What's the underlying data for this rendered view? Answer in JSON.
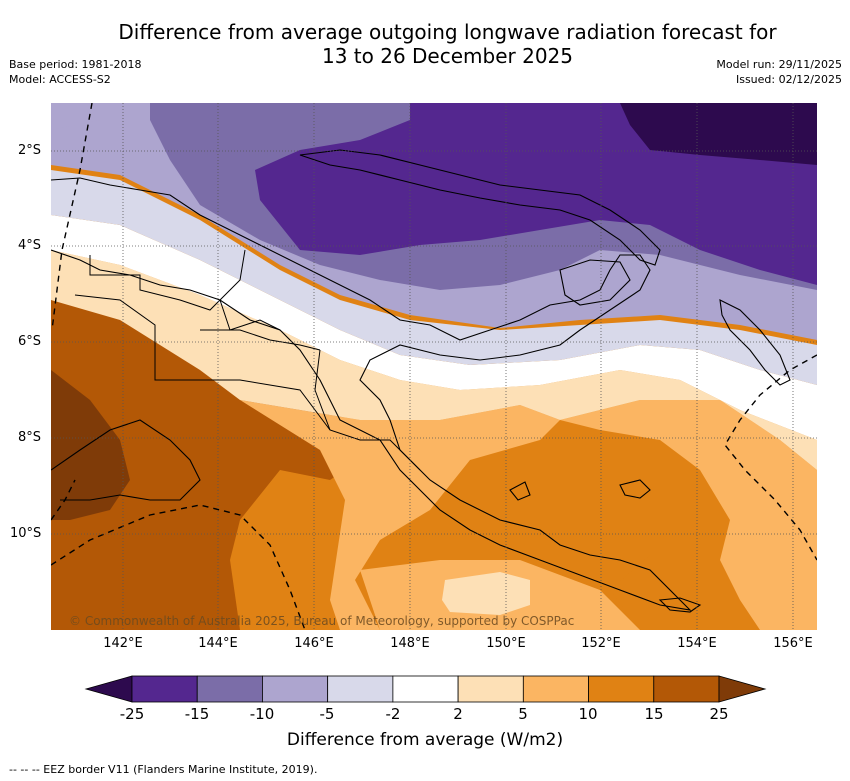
{
  "header": {
    "title_line1": "Difference from average outgoing longwave radiation forecast for",
    "title_line2": "13 to 26 December 2025",
    "base_period": "Base period: 1981-2018",
    "model": "Model: ACCESS-S2",
    "model_run": "Model run: 29/11/2025",
    "issued": "Issued: 02/12/2025"
  },
  "map": {
    "latitude_labels": [
      "2°S",
      "4°S",
      "6°S",
      "8°S",
      "10°S"
    ],
    "longitude_labels": [
      "142°E",
      "144°E",
      "146°E",
      "148°E",
      "150°E",
      "152°E",
      "154°E",
      "156°E"
    ],
    "copyright": "© Commonwealth of Australia 2025, Bureau of Meteorology, supported by COSPPac"
  },
  "legend": {
    "title": "Difference from average (W/m2)",
    "tick_labels": [
      "-25",
      "-15",
      "-10",
      "-5",
      "-2",
      "2",
      "5",
      "10",
      "15",
      "25"
    ],
    "colors": {
      "under": "#2d0a4e",
      "bins": [
        "#54278f",
        "#7b6da8",
        "#ada5cf",
        "#d8d9ea",
        "#ffffff",
        "#fde0b6",
        "#fbb562",
        "#e08214",
        "#b35806"
      ],
      "over": "#7f3b08"
    }
  },
  "footnote": "--  --  -- EEZ border V11 (Flanders Marine Institute, 2019)."
}
